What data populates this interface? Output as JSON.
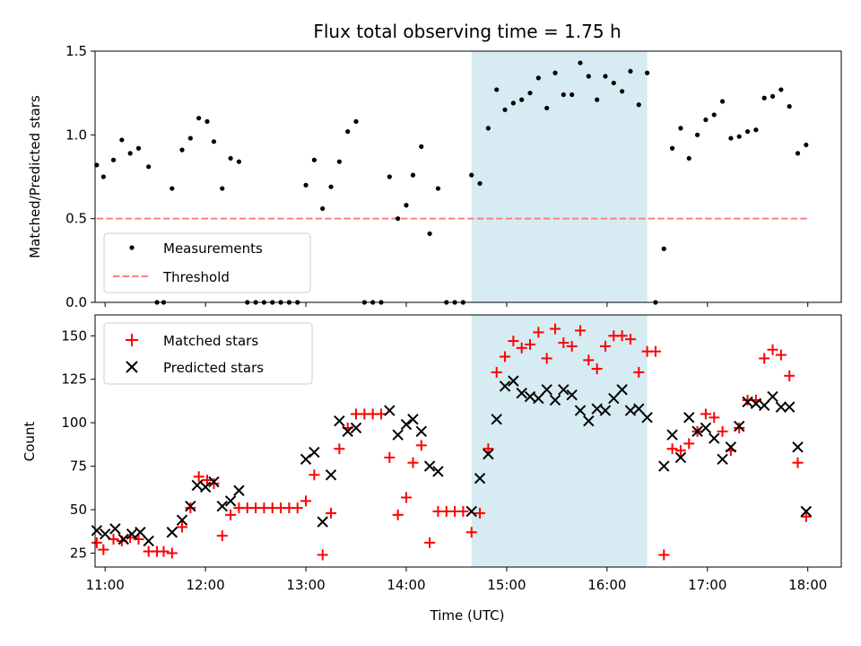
{
  "chart_data": [
    {
      "type": "scatter",
      "title": "Flux total observing time = 1.75 h",
      "xlabel": "",
      "ylabel": "Matched/Predicted stars",
      "xlim": [
        "10:54",
        "18:20"
      ],
      "ylim": [
        0,
        1.5
      ],
      "y_ticks": [
        "0.0",
        "0.5",
        "1.0",
        "1.5"
      ],
      "highlight_span": {
        "start": "14:39",
        "end": "16:24",
        "color": "#add8e6"
      },
      "legend_position": "lower left",
      "threshold": {
        "name": "Threshold",
        "value": 0.5,
        "x_start": "10:55",
        "x_end": "18:00",
        "color": "#ff7f7f",
        "style": "dashed"
      },
      "series": [
        {
          "name": "Measurements",
          "color": "#000000",
          "points": [
            [
              "10:55",
              0.82
            ],
            [
              "10:59",
              0.75
            ],
            [
              "11:05",
              0.85
            ],
            [
              "11:10",
              0.97
            ],
            [
              "11:15",
              0.89
            ],
            [
              "11:20",
              0.92
            ],
            [
              "11:26",
              0.81
            ],
            [
              "11:31",
              0.0
            ],
            [
              "11:35",
              0.0
            ],
            [
              "11:40",
              0.68
            ],
            [
              "11:46",
              0.91
            ],
            [
              "11:51",
              0.98
            ],
            [
              "11:56",
              1.1
            ],
            [
              "12:01",
              1.08
            ],
            [
              "12:05",
              0.96
            ],
            [
              "12:10",
              0.68
            ],
            [
              "12:15",
              0.86
            ],
            [
              "12:20",
              0.84
            ],
            [
              "12:25",
              0.0
            ],
            [
              "12:30",
              0.0
            ],
            [
              "12:35",
              0.0
            ],
            [
              "12:40",
              0.0
            ],
            [
              "12:45",
              0.0
            ],
            [
              "12:50",
              0.0
            ],
            [
              "12:55",
              0.0
            ],
            [
              "13:00",
              0.7
            ],
            [
              "13:05",
              0.85
            ],
            [
              "13:10",
              0.56
            ],
            [
              "13:15",
              0.69
            ],
            [
              "13:20",
              0.84
            ],
            [
              "13:25",
              1.02
            ],
            [
              "13:30",
              1.08
            ],
            [
              "13:35",
              0.0
            ],
            [
              "13:40",
              0.0
            ],
            [
              "13:45",
              0.0
            ],
            [
              "13:50",
              0.75
            ],
            [
              "13:55",
              0.5
            ],
            [
              "14:00",
              0.58
            ],
            [
              "14:04",
              0.76
            ],
            [
              "14:09",
              0.93
            ],
            [
              "14:14",
              0.41
            ],
            [
              "14:19",
              0.68
            ],
            [
              "14:24",
              0.0
            ],
            [
              "14:29",
              0.0
            ],
            [
              "14:34",
              0.0
            ],
            [
              "14:39",
              0.76
            ],
            [
              "14:44",
              0.71
            ],
            [
              "14:49",
              1.04
            ],
            [
              "14:54",
              1.27
            ],
            [
              "14:59",
              1.15
            ],
            [
              "15:04",
              1.19
            ],
            [
              "15:09",
              1.21
            ],
            [
              "15:14",
              1.25
            ],
            [
              "15:19",
              1.34
            ],
            [
              "15:24",
              1.16
            ],
            [
              "15:29",
              1.37
            ],
            [
              "15:34",
              1.24
            ],
            [
              "15:39",
              1.24
            ],
            [
              "15:44",
              1.43
            ],
            [
              "15:49",
              1.35
            ],
            [
              "15:54",
              1.21
            ],
            [
              "15:59",
              1.35
            ],
            [
              "16:04",
              1.31
            ],
            [
              "16:09",
              1.26
            ],
            [
              "16:14",
              1.38
            ],
            [
              "16:19",
              1.18
            ],
            [
              "16:24",
              1.37
            ],
            [
              "16:29",
              0.0
            ],
            [
              "16:34",
              0.32
            ],
            [
              "16:39",
              0.92
            ],
            [
              "16:44",
              1.04
            ],
            [
              "16:49",
              0.86
            ],
            [
              "16:54",
              1.0
            ],
            [
              "16:59",
              1.09
            ],
            [
              "17:04",
              1.12
            ],
            [
              "17:09",
              1.2
            ],
            [
              "17:14",
              0.98
            ],
            [
              "17:19",
              0.99
            ],
            [
              "17:24",
              1.02
            ],
            [
              "17:29",
              1.03
            ],
            [
              "17:34",
              1.22
            ],
            [
              "17:39",
              1.23
            ],
            [
              "17:44",
              1.27
            ],
            [
              "17:49",
              1.17
            ],
            [
              "17:54",
              0.89
            ],
            [
              "17:59",
              0.94
            ]
          ]
        }
      ]
    },
    {
      "type": "scatter",
      "title": "",
      "xlabel": "Time (UTC)",
      "ylabel": "Count",
      "xlim": [
        "10:54",
        "18:20"
      ],
      "ylim": [
        17,
        162
      ],
      "x_ticks": [
        "11:00",
        "12:00",
        "13:00",
        "14:00",
        "15:00",
        "16:00",
        "17:00",
        "18:00"
      ],
      "y_ticks": [
        "25",
        "50",
        "75",
        "100",
        "125",
        "150"
      ],
      "highlight_span": {
        "start": "14:39",
        "end": "16:24",
        "color": "#add8e6"
      },
      "legend_position": "upper left",
      "series": [
        {
          "name": "Matched stars",
          "marker": "plus",
          "color": "#ff0000",
          "points": [
            [
              "10:55",
              31
            ],
            [
              "10:59",
              27
            ],
            [
              "11:05",
              33
            ],
            [
              "11:10",
              32
            ],
            [
              "11:15",
              34
            ],
            [
              "11:20",
              33
            ],
            [
              "11:26",
              26
            ],
            [
              "11:31",
              26
            ],
            [
              "11:35",
              26
            ],
            [
              "11:40",
              25
            ],
            [
              "11:46",
              40
            ],
            [
              "11:51",
              51
            ],
            [
              "11:56",
              69
            ],
            [
              "12:01",
              67
            ],
            [
              "12:05",
              65
            ],
            [
              "12:10",
              35
            ],
            [
              "12:15",
              47
            ],
            [
              "12:20",
              51
            ],
            [
              "12:25",
              51
            ],
            [
              "12:30",
              51
            ],
            [
              "12:35",
              51
            ],
            [
              "12:40",
              51
            ],
            [
              "12:45",
              51
            ],
            [
              "12:50",
              51
            ],
            [
              "12:55",
              51
            ],
            [
              "13:00",
              55
            ],
            [
              "13:05",
              70
            ],
            [
              "13:10",
              24
            ],
            [
              "13:15",
              48
            ],
            [
              "13:20",
              85
            ],
            [
              "13:25",
              97
            ],
            [
              "13:30",
              105
            ],
            [
              "13:35",
              105
            ],
            [
              "13:40",
              105
            ],
            [
              "13:45",
              105
            ],
            [
              "13:50",
              80
            ],
            [
              "13:55",
              47
            ],
            [
              "14:00",
              57
            ],
            [
              "14:04",
              77
            ],
            [
              "14:09",
              87
            ],
            [
              "14:14",
              31
            ],
            [
              "14:19",
              49
            ],
            [
              "14:24",
              49
            ],
            [
              "14:29",
              49
            ],
            [
              "14:34",
              49
            ],
            [
              "14:39",
              37
            ],
            [
              "14:44",
              48
            ],
            [
              "14:49",
              85
            ],
            [
              "14:54",
              129
            ],
            [
              "14:59",
              138
            ],
            [
              "15:04",
              147
            ],
            [
              "15:09",
              143
            ],
            [
              "15:14",
              145
            ],
            [
              "15:19",
              152
            ],
            [
              "15:24",
              137
            ],
            [
              "15:29",
              154
            ],
            [
              "15:34",
              146
            ],
            [
              "15:39",
              144
            ],
            [
              "15:44",
              153
            ],
            [
              "15:49",
              136
            ],
            [
              "15:54",
              131
            ],
            [
              "15:59",
              144
            ],
            [
              "16:04",
              150
            ],
            [
              "16:09",
              150
            ],
            [
              "16:14",
              148
            ],
            [
              "16:19",
              129
            ],
            [
              "16:24",
              141
            ],
            [
              "16:29",
              141
            ],
            [
              "16:34",
              24
            ],
            [
              "16:39",
              85
            ],
            [
              "16:44",
              84
            ],
            [
              "16:49",
              88
            ],
            [
              "16:54",
              95
            ],
            [
              "16:59",
              105
            ],
            [
              "17:04",
              103
            ],
            [
              "17:09",
              95
            ],
            [
              "17:14",
              84
            ],
            [
              "17:19",
              97
            ],
            [
              "17:24",
              113
            ],
            [
              "17:29",
              113
            ],
            [
              "17:34",
              137
            ],
            [
              "17:39",
              142
            ],
            [
              "17:44",
              139
            ],
            [
              "17:49",
              127
            ],
            [
              "17:54",
              77
            ],
            [
              "17:59",
              46
            ]
          ]
        },
        {
          "name": "Predicted stars",
          "marker": "x",
          "color": "#000000",
          "points": [
            [
              "10:55",
              38
            ],
            [
              "11:00",
              36
            ],
            [
              "11:06",
              39
            ],
            [
              "11:11",
              33
            ],
            [
              "11:16",
              36
            ],
            [
              "11:21",
              37
            ],
            [
              "11:26",
              32
            ],
            [
              "11:40",
              37
            ],
            [
              "11:46",
              44
            ],
            [
              "11:51",
              52
            ],
            [
              "11:55",
              64
            ],
            [
              "12:00",
              63
            ],
            [
              "12:05",
              66
            ],
            [
              "12:10",
              52
            ],
            [
              "12:15",
              55
            ],
            [
              "12:20",
              61
            ],
            [
              "13:00",
              79
            ],
            [
              "13:05",
              83
            ],
            [
              "13:10",
              43
            ],
            [
              "13:15",
              70
            ],
            [
              "13:20",
              101
            ],
            [
              "13:25",
              95
            ],
            [
              "13:30",
              97
            ],
            [
              "13:50",
              107
            ],
            [
              "13:55",
              93
            ],
            [
              "14:00",
              99
            ],
            [
              "14:04",
              102
            ],
            [
              "14:09",
              95
            ],
            [
              "14:14",
              75
            ],
            [
              "14:19",
              72
            ],
            [
              "14:39",
              49
            ],
            [
              "14:44",
              68
            ],
            [
              "14:49",
              82
            ],
            [
              "14:54",
              102
            ],
            [
              "14:59",
              121
            ],
            [
              "15:04",
              124
            ],
            [
              "15:09",
              117
            ],
            [
              "15:14",
              115
            ],
            [
              "15:19",
              114
            ],
            [
              "15:24",
              119
            ],
            [
              "15:29",
              113
            ],
            [
              "15:34",
              119
            ],
            [
              "15:39",
              116
            ],
            [
              "15:44",
              107
            ],
            [
              "15:49",
              101
            ],
            [
              "15:54",
              108
            ],
            [
              "15:59",
              107
            ],
            [
              "16:04",
              114
            ],
            [
              "16:09",
              119
            ],
            [
              "16:14",
              107
            ],
            [
              "16:19",
              108
            ],
            [
              "16:24",
              103
            ],
            [
              "16:34",
              75
            ],
            [
              "16:39",
              93
            ],
            [
              "16:44",
              80
            ],
            [
              "16:49",
              103
            ],
            [
              "16:54",
              95
            ],
            [
              "16:59",
              97
            ],
            [
              "17:04",
              91
            ],
            [
              "17:09",
              79
            ],
            [
              "17:14",
              86
            ],
            [
              "17:19",
              98
            ],
            [
              "17:24",
              112
            ],
            [
              "17:29",
              111
            ],
            [
              "17:34",
              110
            ],
            [
              "17:39",
              115
            ],
            [
              "17:44",
              109
            ],
            [
              "17:49",
              109
            ],
            [
              "17:54",
              86
            ],
            [
              "17:59",
              49
            ]
          ]
        }
      ]
    }
  ]
}
